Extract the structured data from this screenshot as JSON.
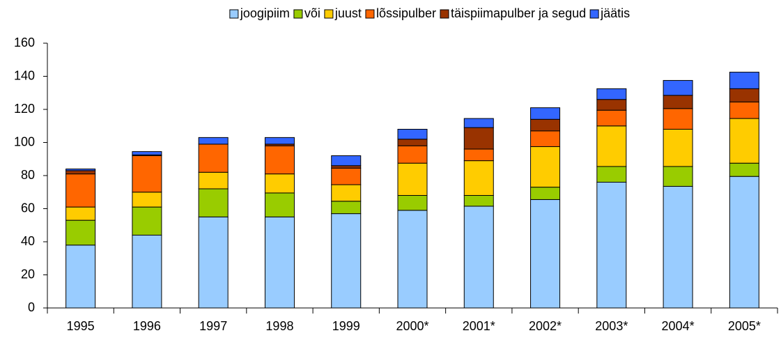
{
  "chart_data": {
    "type": "bar",
    "stacked": true,
    "categories": [
      "1995",
      "1996",
      "1997",
      "1998",
      "1999",
      "2000*",
      "2001*",
      "2002*",
      "2003*",
      "2004*",
      "2005*"
    ],
    "series": [
      {
        "name": "joogipiim",
        "color": "#99ccff",
        "values": [
          38,
          44,
          55,
          55,
          57,
          59,
          61.5,
          65.5,
          76,
          73.5,
          79.5
        ]
      },
      {
        "name": "või",
        "color": "#99cc00",
        "values": [
          15,
          17,
          17,
          14.5,
          7.5,
          9,
          6.5,
          7.5,
          9.5,
          12,
          8
        ]
      },
      {
        "name": "juust",
        "color": "#ffcc00",
        "values": [
          8,
          9,
          10,
          11.5,
          10,
          19.5,
          21,
          24.5,
          24.5,
          22.5,
          27
        ]
      },
      {
        "name": "lõssipulber",
        "color": "#ff6600",
        "values": [
          20,
          22,
          17,
          17,
          10,
          10.5,
          7,
          9.5,
          9.5,
          12.5,
          10
        ]
      },
      {
        "name": "täispiimapulber ja segud",
        "color": "#993300",
        "values": [
          2,
          0.5,
          0,
          1,
          1.5,
          4,
          13,
          7,
          6.5,
          8,
          8
        ]
      },
      {
        "name": "jäätis",
        "color": "#3366ff",
        "values": [
          1,
          2,
          4,
          4,
          6,
          6,
          5.5,
          7,
          6.5,
          9,
          10
        ]
      }
    ],
    "ylim": [
      0,
      160
    ],
    "yticks": [
      0,
      20,
      40,
      60,
      80,
      100,
      120,
      140,
      160
    ],
    "legend": "top"
  }
}
